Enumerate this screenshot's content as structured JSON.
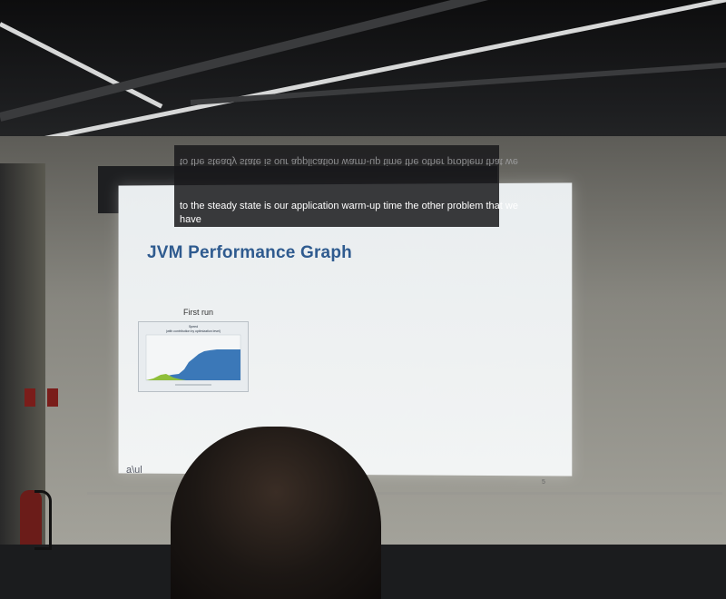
{
  "caption": {
    "mirrored": "to the steady state is our application warm-up time the other problem that we",
    "line1": "to the steady state is our application warm-up time the other problem that we",
    "line2": "have"
  },
  "slide": {
    "title": "JVM Performance Graph",
    "first_run_label": "First run",
    "chart_title": "Speed",
    "chart_subtitle": "(with contribution by optimization level)",
    "logo": "a\\ul",
    "page_number": "5"
  },
  "colors": {
    "title": "#2f5b8f",
    "bar_fill": "#3b78b8",
    "green_band": "#8fbf3a"
  }
}
